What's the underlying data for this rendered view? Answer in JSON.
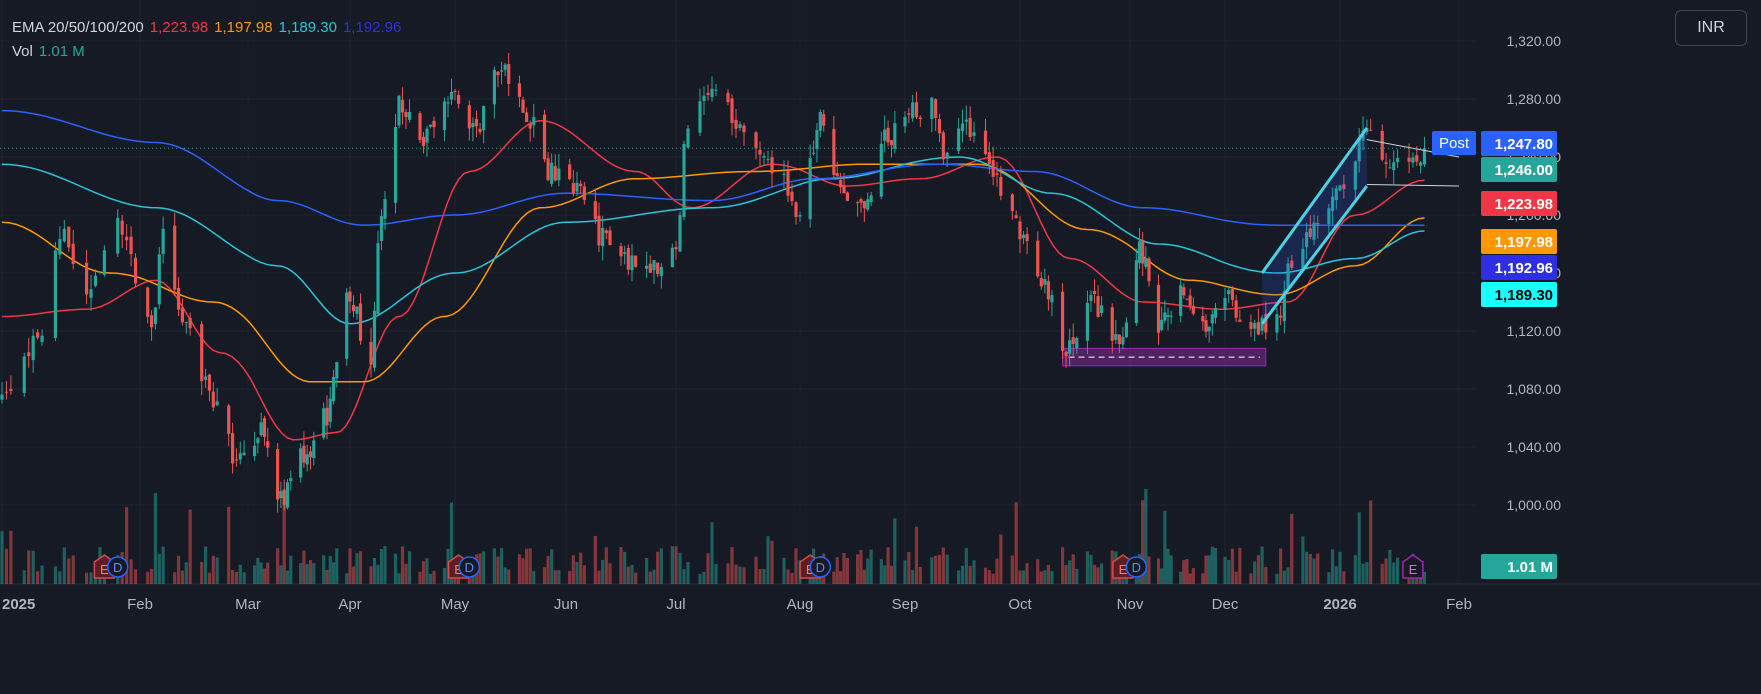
{
  "currency": "INR",
  "legend": {
    "ema_label": "EMA 20/50/100/200",
    "ema_values": [
      "1,223.98",
      "1,197.98",
      "1,189.30",
      "1,192.96"
    ],
    "vol_label": "Vol",
    "vol_value": "1.01 M"
  },
  "colors": {
    "background": "#161a25",
    "grid": "#1f2330",
    "up": "#26a69a",
    "down": "#ef5350",
    "ema20": "#f23645",
    "ema50": "#ff9800",
    "ema100": "#26c6da",
    "ema200": "#2962ff"
  },
  "price_labels": [
    {
      "text": "Post",
      "kind": "post-tag",
      "color": "#2962ff"
    },
    {
      "text": "1,247.80",
      "value": 1247.8,
      "color": "#2962ff"
    },
    {
      "text": "1,246.00",
      "value": 1246.0,
      "color": "#26a69a"
    },
    {
      "text": "1,223.98",
      "value": 1223.98,
      "color": "#f23645"
    },
    {
      "text": "1,197.98",
      "value": 1197.98,
      "color": "#ff9800"
    },
    {
      "text": "1,192.96",
      "value": 1192.96,
      "color": "#2e2fe5"
    },
    {
      "text": "1,189.30",
      "value": 1189.3,
      "color": "#18ffff"
    },
    {
      "text": "1.01 M",
      "kind": "volume",
      "color": "#26a69a"
    }
  ],
  "event_markers": [
    {
      "label": "E",
      "type": "earnings",
      "date": "2025-01-24"
    },
    {
      "label": "D",
      "type": "dividend",
      "date": "2025-01-27"
    },
    {
      "label": "E",
      "type": "earnings",
      "date": "2025-05-02"
    },
    {
      "label": "D",
      "type": "dividend",
      "date": "2025-05-05"
    },
    {
      "label": "E",
      "type": "earnings",
      "date": "2025-08-04"
    },
    {
      "label": "D",
      "type": "dividend",
      "date": "2025-08-07"
    },
    {
      "label": "E",
      "type": "earnings",
      "date": "2025-10-30"
    },
    {
      "label": "D",
      "type": "dividend",
      "date": "2025-11-03"
    },
    {
      "label": "E",
      "type": "earnings-upcoming",
      "date": "2026-01-20"
    }
  ],
  "chart_data": {
    "type": "candlestick",
    "x_axis": {
      "labels": [
        "2025",
        "Feb",
        "Mar",
        "Apr",
        "May",
        "Jun",
        "Jul",
        "Aug",
        "Sep",
        "Oct",
        "Nov",
        "Dec",
        "2026",
        "Feb"
      ],
      "dates": [
        "2025-01-01",
        "2025-02-01",
        "2025-03-01",
        "2025-04-01",
        "2025-05-01",
        "2025-06-01",
        "2025-07-01",
        "2025-08-01",
        "2025-09-01",
        "2025-10-01",
        "2025-11-01",
        "2025-12-01",
        "2026-01-01",
        "2026-02-01"
      ]
    },
    "y_axis": {
      "ticks": [
        "1,000.00",
        "1,040.00",
        "1,080.00",
        "1,120.00",
        "1,160.00",
        "1,200.00",
        "1,240.00",
        "1,280.00",
        "1,320.00"
      ],
      "tick_values": [
        1000,
        1040,
        1080,
        1120,
        1160,
        1200,
        1240,
        1280,
        1320
      ],
      "range": [
        990,
        1330
      ]
    },
    "price_path": [
      [
        "2025-01-01",
        1075
      ],
      [
        "2025-01-08",
        1110
      ],
      [
        "2025-01-15",
        1185
      ],
      [
        "2025-01-20",
        1150
      ],
      [
        "2025-01-27",
        1190
      ],
      [
        "2025-02-04",
        1125
      ],
      [
        "2025-02-07",
        1185
      ],
      [
        "2025-02-13",
        1120
      ],
      [
        "2025-02-20",
        1075
      ],
      [
        "2025-02-26",
        1030
      ],
      [
        "2025-03-05",
        1050
      ],
      [
        "2025-03-11",
        1005
      ],
      [
        "2025-03-18",
        1035
      ],
      [
        "2025-03-25",
        1060
      ],
      [
        "2025-03-31",
        1150
      ],
      [
        "2025-04-07",
        1100
      ],
      [
        "2025-04-10",
        1205
      ],
      [
        "2025-04-15",
        1275
      ],
      [
        "2025-04-22",
        1250
      ],
      [
        "2025-04-29",
        1285
      ],
      [
        "2025-05-07",
        1260
      ],
      [
        "2025-05-14",
        1300
      ],
      [
        "2025-05-21",
        1270
      ],
      [
        "2025-05-27",
        1230
      ],
      [
        "2025-06-04",
        1215
      ],
      [
        "2025-06-11",
        1185
      ],
      [
        "2025-06-18",
        1170
      ],
      [
        "2025-06-25",
        1165
      ],
      [
        "2025-07-01",
        1175
      ],
      [
        "2025-07-04",
        1265
      ],
      [
        "2025-07-11",
        1290
      ],
      [
        "2025-07-18",
        1255
      ],
      [
        "2025-07-25",
        1235
      ],
      [
        "2025-08-01",
        1205
      ],
      [
        "2025-08-07",
        1265
      ],
      [
        "2025-08-13",
        1220
      ],
      [
        "2025-08-20",
        1205
      ],
      [
        "2025-08-27",
        1255
      ],
      [
        "2025-09-03",
        1270
      ],
      [
        "2025-09-08",
        1280
      ],
      [
        "2025-09-11",
        1240
      ],
      [
        "2025-09-18",
        1260
      ],
      [
        "2025-09-25",
        1220
      ],
      [
        "2025-10-01",
        1190
      ],
      [
        "2025-10-07",
        1155
      ],
      [
        "2025-10-14",
        1110
      ],
      [
        "2025-10-21",
        1140
      ],
      [
        "2025-10-29",
        1115
      ],
      [
        "2025-11-04",
        1175
      ],
      [
        "2025-11-10",
        1125
      ],
      [
        "2025-11-17",
        1145
      ],
      [
        "2025-11-24",
        1120
      ],
      [
        "2025-12-01",
        1145
      ],
      [
        "2025-12-08",
        1120
      ],
      [
        "2025-12-15",
        1130
      ],
      [
        "2025-12-19",
        1165
      ],
      [
        "2025-12-26",
        1195
      ],
      [
        "2026-01-02",
        1225
      ],
      [
        "2026-01-08",
        1255
      ],
      [
        "2026-01-13",
        1240
      ],
      [
        "2026-01-19",
        1230
      ],
      [
        "2026-01-23",
        1246
      ]
    ],
    "series": [
      {
        "name": "EMA 20",
        "last": 1223.98,
        "points": [
          [
            "2025-01-01",
            1130
          ],
          [
            "2025-01-20",
            1135
          ],
          [
            "2025-02-05",
            1155
          ],
          [
            "2025-02-22",
            1105
          ],
          [
            "2025-03-15",
            1045
          ],
          [
            "2025-03-28",
            1050
          ],
          [
            "2025-04-15",
            1130
          ],
          [
            "2025-05-05",
            1230
          ],
          [
            "2025-05-25",
            1265
          ],
          [
            "2025-06-20",
            1230
          ],
          [
            "2025-07-05",
            1205
          ],
          [
            "2025-07-25",
            1235
          ],
          [
            "2025-08-15",
            1220
          ],
          [
            "2025-09-05",
            1225
          ],
          [
            "2025-09-25",
            1240
          ],
          [
            "2025-10-15",
            1170
          ],
          [
            "2025-11-05",
            1140
          ],
          [
            "2025-11-30",
            1135
          ],
          [
            "2025-12-18",
            1140
          ],
          [
            "2026-01-05",
            1200
          ],
          [
            "2026-01-23",
            1224
          ]
        ]
      },
      {
        "name": "EMA 50",
        "last": 1197.98,
        "points": [
          [
            "2025-01-01",
            1195
          ],
          [
            "2025-01-25",
            1160
          ],
          [
            "2025-02-20",
            1140
          ],
          [
            "2025-03-20",
            1085
          ],
          [
            "2025-04-05",
            1085
          ],
          [
            "2025-04-28",
            1130
          ],
          [
            "2025-05-25",
            1205
          ],
          [
            "2025-06-20",
            1225
          ],
          [
            "2025-07-20",
            1230
          ],
          [
            "2025-08-20",
            1235
          ],
          [
            "2025-09-20",
            1235
          ],
          [
            "2025-10-20",
            1190
          ],
          [
            "2025-11-20",
            1155
          ],
          [
            "2025-12-15",
            1145
          ],
          [
            "2026-01-05",
            1165
          ],
          [
            "2026-01-23",
            1198
          ]
        ]
      },
      {
        "name": "EMA 100",
        "last": 1189.3,
        "points": [
          [
            "2025-01-01",
            1235
          ],
          [
            "2025-02-05",
            1205
          ],
          [
            "2025-03-10",
            1165
          ],
          [
            "2025-04-01",
            1125
          ],
          [
            "2025-05-01",
            1160
          ],
          [
            "2025-06-01",
            1195
          ],
          [
            "2025-07-10",
            1205
          ],
          [
            "2025-08-10",
            1225
          ],
          [
            "2025-09-15",
            1240
          ],
          [
            "2025-10-10",
            1215
          ],
          [
            "2025-11-10",
            1180
          ],
          [
            "2025-12-15",
            1160
          ],
          [
            "2026-01-05",
            1170
          ],
          [
            "2026-01-23",
            1189
          ]
        ]
      },
      {
        "name": "EMA 200",
        "last": 1192.96,
        "points": [
          [
            "2025-01-01",
            1272
          ],
          [
            "2025-02-05",
            1250
          ],
          [
            "2025-03-10",
            1210
          ],
          [
            "2025-04-05",
            1193
          ],
          [
            "2025-05-01",
            1200
          ],
          [
            "2025-06-01",
            1215
          ],
          [
            "2025-07-10",
            1210
          ],
          [
            "2025-08-05",
            1225
          ],
          [
            "2025-09-10",
            1235
          ],
          [
            "2025-10-05",
            1230
          ],
          [
            "2025-11-05",
            1205
          ],
          [
            "2025-12-15",
            1193
          ],
          [
            "2026-01-23",
            1193
          ]
        ]
      }
    ],
    "drawings": {
      "rising_channel": {
        "upper": [
          [
            "2025-12-11",
            1160
          ],
          [
            "2026-01-08",
            1260
          ]
        ],
        "lower": [
          [
            "2025-12-11",
            1125
          ],
          [
            "2026-01-08",
            1220
          ]
        ]
      },
      "consolidation": {
        "upper": [
          [
            "2026-01-08",
            1252
          ],
          [
            "2026-02-06",
            1240
          ]
        ],
        "lower": [
          [
            "2026-01-08",
            1221
          ],
          [
            "2026-02-06",
            1220
          ]
        ]
      },
      "support_zone": {
        "from": "2025-10-13",
        "to": "2025-12-12",
        "top": 1108,
        "bottom": 1096
      }
    },
    "last_price": 1246.0,
    "post_market_price": 1247.8,
    "volume_last": "1.01 M"
  }
}
